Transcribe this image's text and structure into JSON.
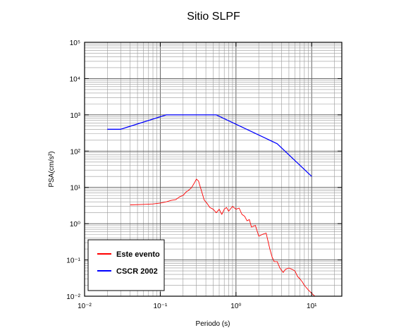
{
  "chart_data": {
    "type": "line",
    "title": "Sitio SLPF",
    "xlabel": "Periodo (s)",
    "ylabel": "PSA(cm/s²)",
    "xscale": "log",
    "yscale": "log",
    "xlim": [
      0.01,
      25
    ],
    "ylim": [
      0.01,
      100000
    ],
    "x_ticks": [
      0.01,
      0.1,
      1,
      10
    ],
    "y_ticks": [
      0.01,
      0.1,
      1,
      10,
      100,
      1000,
      10000,
      100000
    ],
    "grid": true,
    "legend_position": "bottom-left",
    "series": [
      {
        "name": "Este evento",
        "color": "#ff0000",
        "x": [
          0.04,
          0.06,
          0.08,
          0.1,
          0.12,
          0.14,
          0.16,
          0.18,
          0.2,
          0.22,
          0.24,
          0.26,
          0.28,
          0.3,
          0.32,
          0.35,
          0.38,
          0.42,
          0.45,
          0.5,
          0.55,
          0.6,
          0.65,
          0.7,
          0.75,
          0.8,
          0.9,
          1.0,
          1.1,
          1.2,
          1.3,
          1.4,
          1.5,
          1.6,
          1.8,
          2.0,
          2.2,
          2.5,
          2.8,
          3.0,
          3.2,
          3.5,
          3.8,
          4.2,
          4.5,
          5.0,
          5.5,
          6.0,
          6.5,
          7.0,
          7.5,
          8.0,
          9.0,
          10.0,
          11.0,
          12.0
        ],
        "y": [
          3.3,
          3.4,
          3.5,
          3.7,
          4.0,
          4.4,
          4.6,
          5.5,
          6.0,
          7.5,
          8.5,
          10.0,
          13.0,
          17.0,
          15.0,
          8.0,
          4.5,
          3.5,
          2.8,
          2.5,
          2.0,
          2.5,
          1.8,
          2.5,
          2.8,
          2.2,
          3.0,
          2.5,
          2.7,
          1.8,
          1.6,
          1.2,
          1.3,
          0.8,
          0.9,
          0.45,
          0.5,
          0.55,
          0.2,
          0.12,
          0.09,
          0.09,
          0.06,
          0.045,
          0.055,
          0.06,
          0.055,
          0.05,
          0.035,
          0.03,
          0.025,
          0.02,
          0.015,
          0.012,
          0.01,
          0.01
        ]
      },
      {
        "name": "CSCR 2002",
        "color": "#0000ff",
        "x": [
          0.02,
          0.03,
          0.12,
          0.55,
          3.5,
          10
        ],
        "y": [
          400,
          400,
          1000,
          1000,
          160,
          20
        ]
      }
    ]
  }
}
